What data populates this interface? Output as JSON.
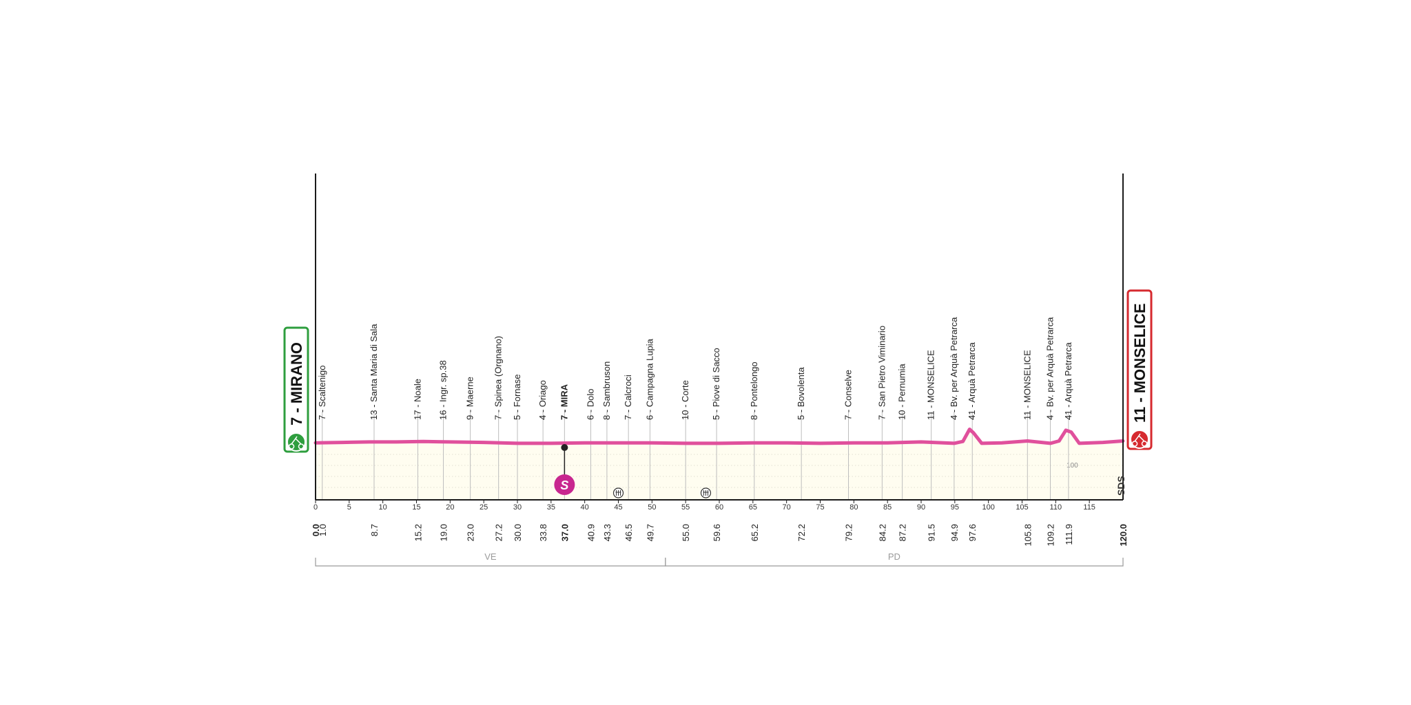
{
  "chart_data": {
    "type": "area",
    "title": "",
    "xlabel": "",
    "ylabel": "",
    "x_unit": "km",
    "xlim": [
      0,
      120
    ],
    "ylim": [
      0,
      100
    ],
    "ygrid_label": "100",
    "x_ticks": [
      0,
      5,
      10,
      15,
      20,
      25,
      30,
      35,
      40,
      45,
      50,
      55,
      60,
      65,
      70,
      75,
      80,
      85,
      90,
      95,
      100,
      105,
      110,
      115
    ],
    "profile": [
      {
        "km": 0,
        "alt": 7
      },
      {
        "km": 4,
        "alt": 8
      },
      {
        "km": 8,
        "alt": 9
      },
      {
        "km": 12,
        "alt": 9
      },
      {
        "km": 16,
        "alt": 10
      },
      {
        "km": 20,
        "alt": 9
      },
      {
        "km": 25,
        "alt": 8
      },
      {
        "km": 30,
        "alt": 6
      },
      {
        "km": 35,
        "alt": 6
      },
      {
        "km": 40,
        "alt": 7
      },
      {
        "km": 45,
        "alt": 7
      },
      {
        "km": 50,
        "alt": 7
      },
      {
        "km": 55,
        "alt": 6
      },
      {
        "km": 60,
        "alt": 6
      },
      {
        "km": 65,
        "alt": 7
      },
      {
        "km": 70,
        "alt": 7
      },
      {
        "km": 75,
        "alt": 6
      },
      {
        "km": 80,
        "alt": 7
      },
      {
        "km": 85,
        "alt": 7
      },
      {
        "km": 90,
        "alt": 9
      },
      {
        "km": 94.9,
        "alt": 6
      },
      {
        "km": 96.2,
        "alt": 10
      },
      {
        "km": 97.2,
        "alt": 36
      },
      {
        "km": 97.8,
        "alt": 28
      },
      {
        "km": 99,
        "alt": 6
      },
      {
        "km": 102,
        "alt": 7
      },
      {
        "km": 105.8,
        "alt": 11
      },
      {
        "km": 109.2,
        "alt": 6
      },
      {
        "km": 110.5,
        "alt": 11
      },
      {
        "km": 111.5,
        "alt": 34
      },
      {
        "km": 112.3,
        "alt": 30
      },
      {
        "km": 113.5,
        "alt": 6
      },
      {
        "km": 117,
        "alt": 8
      },
      {
        "km": 120,
        "alt": 11
      }
    ],
    "waypoints": [
      {
        "km": 1.0,
        "km_label": "1.0",
        "label": "7 - Scaltenigo"
      },
      {
        "km": 8.7,
        "km_label": "8.7",
        "label": "13 - Santa Maria di Sala"
      },
      {
        "km": 15.2,
        "km_label": "15.2",
        "label": "17 - Noale"
      },
      {
        "km": 19.0,
        "km_label": "19.0",
        "label": "16 - Ingr. sp.38"
      },
      {
        "km": 23.0,
        "km_label": "23.0",
        "label": "9 - Maerne"
      },
      {
        "km": 27.2,
        "km_label": "27.2",
        "label": "7 - Spinea (Orgnano)"
      },
      {
        "km": 30.0,
        "km_label": "30.0",
        "label": "5 - Fornase"
      },
      {
        "km": 33.8,
        "km_label": "33.8",
        "label": "4 - Oriago"
      },
      {
        "km": 37.0,
        "km_label": "37.0",
        "label": "7 - MIRA",
        "bold": true
      },
      {
        "km": 40.9,
        "km_label": "40.9",
        "label": "6 - Dolo"
      },
      {
        "km": 43.3,
        "km_label": "43.3",
        "label": "8 - Sambruson"
      },
      {
        "km": 46.5,
        "km_label": "46.5",
        "label": "7 - Calcroci"
      },
      {
        "km": 49.7,
        "km_label": "49.7",
        "label": "6 - Campagna Lupia"
      },
      {
        "km": 55.0,
        "km_label": "55.0",
        "label": "10 - Corte"
      },
      {
        "km": 59.6,
        "km_label": "59.6",
        "label": "5 - Piove di Sacco"
      },
      {
        "km": 65.2,
        "km_label": "65.2",
        "label": "8 - Pontelongo"
      },
      {
        "km": 72.2,
        "km_label": "72.2",
        "label": "5 - Bovolenta"
      },
      {
        "km": 79.2,
        "km_label": "79.2",
        "label": "7 - Conselve"
      },
      {
        "km": 84.2,
        "km_label": "84.2",
        "label": "7 - San Pietro Viminario"
      },
      {
        "km": 87.2,
        "km_label": "87.2",
        "label": "10 - Pernumia"
      },
      {
        "km": 91.5,
        "km_label": "91.5",
        "label": "11 - MONSELICE"
      },
      {
        "km": 94.9,
        "km_label": "94.9",
        "label": "4 - Bv. per Arquà  Petrarca"
      },
      {
        "km": 97.6,
        "km_label": "97.6",
        "label": "41 - Arquà Petrarca"
      },
      {
        "km": 105.8,
        "km_label": "105.8",
        "label": "11 - MONSELICE"
      },
      {
        "km": 109.2,
        "km_label": "109.2",
        "label": "4 - Bv. per Arquà  Petrarca"
      },
      {
        "km": 111.9,
        "km_label": "111.9",
        "label": "41 - Arquà Petrarca"
      }
    ],
    "start": {
      "km": 0,
      "km_label": "0.0",
      "label": "7 - MIRANO",
      "color": "#2e9e3e"
    },
    "finish": {
      "km": 120,
      "km_label": "120.0",
      "label": "11 - MONSELICE",
      "color": "#d62a2f"
    },
    "sprint": {
      "km": 37.0,
      "symbol": "S",
      "color": "#c8278f"
    },
    "feed_zones": [
      {
        "km": 45
      },
      {
        "km": 58
      }
    ],
    "provinces": [
      {
        "label": "VE",
        "from": 0,
        "to": 52
      },
      {
        "label": "PD",
        "from": 52,
        "to": 120
      }
    ],
    "vertical_brand": "SDS",
    "colors": {
      "profile_line": "#e0509c",
      "profile_fill": "#fffdf0",
      "axis": "#1a1a1a",
      "grid": "#bdbdbd",
      "province": "#9a9a9a"
    }
  }
}
